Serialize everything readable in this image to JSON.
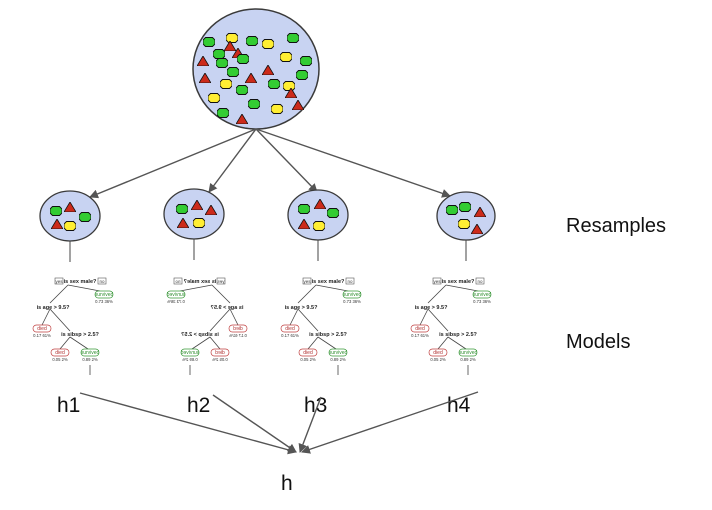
{
  "labels": {
    "resamples": "Resamples",
    "models": "Models",
    "aggregate": "h"
  },
  "hypotheses": [
    "h1",
    "h2",
    "h3",
    "h4"
  ],
  "tree": {
    "root_question": "is sex male?",
    "yes": "yes",
    "no": "no",
    "age_question": "is age > 9.5?",
    "sibsp_question": "is sibsp > 2.5?",
    "leaf_died": "died",
    "leaf_survived": "survived",
    "stat_root_survived": "0.73  36%",
    "stat_age_died": "0.17  61%",
    "stat_sibsp_died": "0.05  2%",
    "stat_sibsp_survived": "0.89  2%"
  },
  "colors": {
    "ellipse_fill": "#c8d3f2",
    "ellipse_stroke": "#3a3a3a",
    "green_shape": "#33cc33",
    "yellow_shape": "#ffee33",
    "red_shape": "#cc2a1a",
    "arrow": "#555555"
  }
}
